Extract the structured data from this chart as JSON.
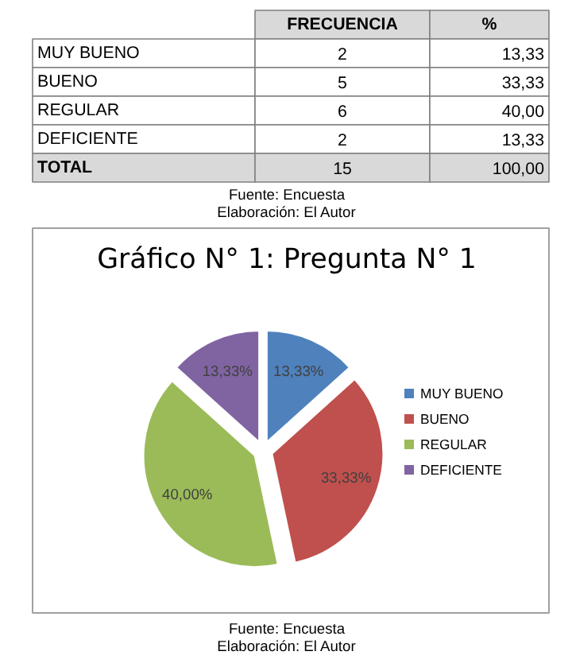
{
  "chart_data": {
    "type": "pie",
    "title": "Gráfico N° 1: Pregunta N° 1",
    "categories": [
      "MUY BUENO",
      "BUENO",
      "REGULAR",
      "DEFICIENTE"
    ],
    "values": [
      13.33,
      33.33,
      40.0,
      13.33
    ],
    "colors": [
      "#4f81bd",
      "#c0504d",
      "#9bbb59",
      "#8064a2"
    ],
    "value_labels": [
      "13,33%",
      "33,33%",
      "40,00%",
      "13,33%"
    ],
    "legend": "right",
    "annotations": [
      "FRECUENCIA",
      "%",
      "MUY BUENO",
      "2",
      "13,33",
      "BUENO",
      "5",
      "33,33",
      "REGULAR",
      "6",
      "40,00",
      "DEFICIENTE",
      "2",
      "13,33",
      "TOTAL",
      "15",
      "100,00",
      "Fuente: Encuesta",
      "Elaboración: El Autor",
      "Fuente: Encuesta",
      "Elaboración: El Autor"
    ]
  }
}
